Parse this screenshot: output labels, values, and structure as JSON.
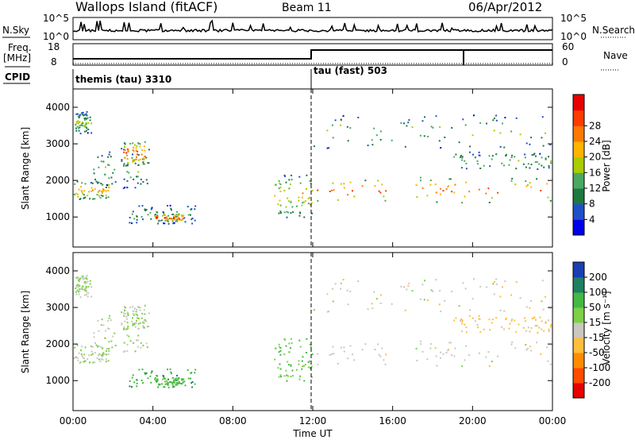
{
  "header": {
    "station": "Wallops Island (fitACF)",
    "beam": "Beam 11",
    "date": "06/Apr/2012"
  },
  "noise_panel": {
    "left_label": "N.Sky",
    "right_label": "N.Search",
    "left_ticks": [
      "10^5",
      "10^0"
    ],
    "right_ticks": [
      "10^5",
      "10^0"
    ]
  },
  "freq_panel": {
    "left_label_1": "Freq.",
    "left_label_2": "[MHz]",
    "right_label": "Nave",
    "left_ticks": [
      "18",
      "8"
    ],
    "right_ticks": [
      "60",
      "0"
    ]
  },
  "cpid": {
    "label": "CPID",
    "segments": [
      {
        "name": "themis (tau) 3310",
        "start_hour": 0
      },
      {
        "name": "tau (fast) 503",
        "start_hour": 12
      }
    ]
  },
  "axes": {
    "x_title": "Time UT",
    "x_ticks": [
      "00:00",
      "04:00",
      "08:00",
      "12:00",
      "16:00",
      "20:00",
      "00:00"
    ],
    "y_title": "Slant Range [km]",
    "y_ticks": [
      "1000",
      "2000",
      "3000",
      "4000"
    ]
  },
  "power_panel": {
    "colorbar_title": "Power [dB]",
    "colorbar_ticks": [
      "4",
      "8",
      "12",
      "16",
      "20",
      "24",
      "28"
    ],
    "colors": [
      "#0000e6",
      "#2050c8",
      "#1e7840",
      "#4aa860",
      "#aacc00",
      "#ffb400",
      "#ff7800",
      "#ff3a00",
      "#e60000"
    ]
  },
  "velocity_panel": {
    "colorbar_title": "Velocity [m s⁻¹]",
    "colorbar_ticks": [
      "200",
      "100",
      "50",
      "15",
      "-15",
      "-50",
      "-100",
      "-200"
    ],
    "colors": [
      "#1a3fb4",
      "#1e8060",
      "#44b844",
      "#7ed048",
      "#c8c8c0",
      "#ffbe3c",
      "#ff8c00",
      "#ff4a00",
      "#e60000"
    ]
  },
  "chart_data": {
    "type": "heatmap",
    "x_range_hours": [
      0,
      24
    ],
    "y_range_km": [
      180,
      4500
    ],
    "panels": [
      "Power [dB]",
      "Velocity [m s⁻¹]"
    ],
    "echo_regions": [
      {
        "t0": 0.05,
        "t1": 0.9,
        "r0": 3300,
        "r1": 3900,
        "power_db": 16,
        "velocity": 15
      },
      {
        "t0": 0.0,
        "t1": 1.8,
        "r0": 1500,
        "r1": 2000,
        "power_db": 22,
        "velocity": 15
      },
      {
        "t0": 1.0,
        "t1": 3.8,
        "r0": 1800,
        "r1": 2900,
        "power_db": 14,
        "velocity": 15
      },
      {
        "t0": 2.5,
        "t1": 3.6,
        "r0": 2400,
        "r1": 3100,
        "power_db": 26,
        "velocity": 15
      },
      {
        "t0": 2.5,
        "t1": 6.2,
        "r0": 800,
        "r1": 1350,
        "power_db": 12,
        "velocity": 90
      },
      {
        "t0": 4.0,
        "t1": 5.5,
        "r0": 900,
        "r1": 1100,
        "power_db": 28,
        "velocity": 60
      },
      {
        "t0": 10.0,
        "t1": 12.0,
        "r0": 1000,
        "r1": 2200,
        "power_db": 20,
        "velocity": 50
      },
      {
        "t0": 12.0,
        "t1": 24.0,
        "r0": 1400,
        "r1": 2100,
        "power_db": 26,
        "velocity": 0
      },
      {
        "t0": 12.0,
        "t1": 24.0,
        "r0": 2900,
        "r1": 3800,
        "power_db": 16,
        "velocity": 0
      },
      {
        "t0": 19.0,
        "t1": 24.0,
        "r0": 2300,
        "r1": 2800,
        "power_db": 14,
        "velocity": -30
      }
    ],
    "cpid_change_hour": 12,
    "freq_mhz": {
      "before_12": 10,
      "after_12": 15
    }
  }
}
